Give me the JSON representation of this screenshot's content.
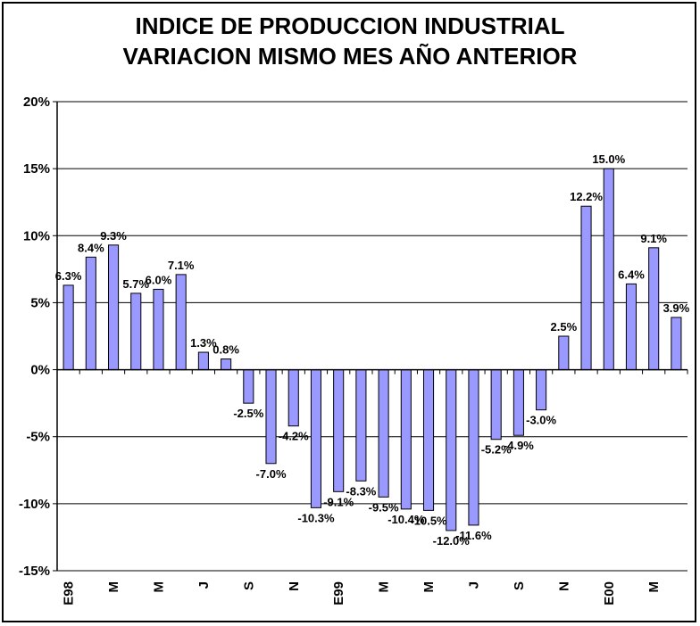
{
  "chart_data": {
    "type": "bar",
    "title_line1": "INDICE DE PRODUCCION INDUSTRIAL",
    "title_line2": "VARIACION MISMO MES AÑO ANTERIOR",
    "ylim": [
      -15,
      20
    ],
    "yticks": [
      20,
      15,
      10,
      5,
      0,
      -5,
      -10,
      -15
    ],
    "ytick_labels": [
      "20%",
      "15%",
      "10%",
      "5%",
      "0%",
      "-5%",
      "-10%",
      "-15%"
    ],
    "grid": true,
    "bar_color": "#9999ff",
    "x_labels": [
      "E98",
      "",
      "M",
      "",
      "M",
      "",
      "J",
      "",
      "S",
      "",
      "N",
      "",
      "E99",
      "",
      "M",
      "",
      "M",
      "",
      "J",
      "",
      "S",
      "",
      "N",
      "",
      "E00",
      "",
      "M",
      ""
    ],
    "values": [
      6.3,
      8.4,
      9.3,
      5.7,
      6.0,
      7.1,
      1.3,
      0.8,
      -2.5,
      -7.0,
      -4.2,
      -10.3,
      -9.1,
      -8.3,
      -9.5,
      -10.4,
      -10.5,
      -12.0,
      -11.6,
      -5.2,
      -4.9,
      -3.0,
      2.5,
      12.2,
      15.0,
      6.4,
      9.1,
      3.9
    ],
    "data_labels": [
      "6.3%",
      "8.4%",
      "9.3%",
      "5.7%",
      "6.0%",
      "7.1%",
      "1.3%",
      "0.8%",
      "-2.5%",
      "-7.0%",
      "-4.2%",
      "-10.3%",
      "-9.1%",
      "-8.3%",
      "-9.5%",
      "-10.4%",
      "-10.5%",
      "-12.0%",
      "-11.6%",
      "-5.2%",
      "-4.9%",
      "-3.0%",
      "2.5%",
      "12.2%",
      "15.0%",
      "6.4%",
      "9.1%",
      "3.9%"
    ]
  }
}
